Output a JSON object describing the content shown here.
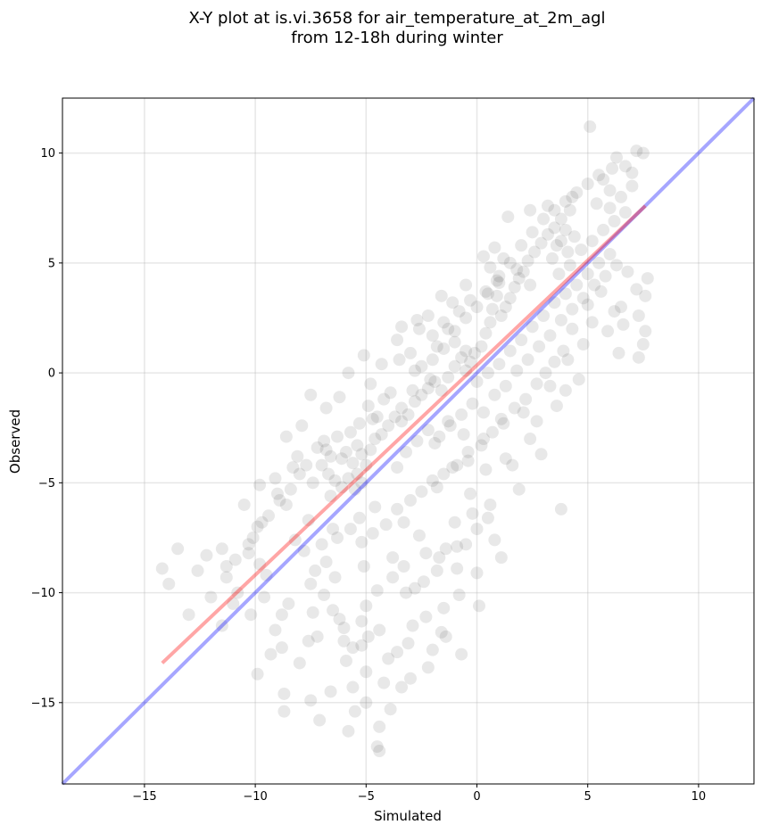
{
  "chart_data": {
    "type": "scatter",
    "title": "X-Y plot at is.vi.3658 for air_temperature_at_2m_agl",
    "subtitle": "from 12-18h during winter",
    "xlabel": "Simulated",
    "ylabel": "Observed",
    "xlim": [
      -18.7,
      12.5
    ],
    "ylim": [
      -18.7,
      12.5
    ],
    "xticks": [
      -15,
      -10,
      -5,
      0,
      5,
      10
    ],
    "yticks": [
      -15,
      -10,
      -5,
      0,
      5,
      10
    ],
    "xtick_labels": [
      "−15",
      "−10",
      "−5",
      "0",
      "5",
      "10"
    ],
    "ytick_labels": [
      "−15",
      "−10",
      "−5",
      "0",
      "5",
      "10"
    ],
    "grid": true,
    "point_color": "#000000",
    "point_alpha": 0.09,
    "points": [
      [
        -14.2,
        -8.9
      ],
      [
        -13.5,
        -8.0
      ],
      [
        -13.9,
        -9.6
      ],
      [
        -12.2,
        -8.3
      ],
      [
        -11.5,
        -8.0
      ],
      [
        -11.3,
        -8.8
      ],
      [
        -11.0,
        -10.5
      ],
      [
        -11.5,
        -11.5
      ],
      [
        -10.3,
        -8.2
      ],
      [
        -10.1,
        -7.5
      ],
      [
        -9.7,
        -6.8
      ],
      [
        -9.8,
        -8.7
      ],
      [
        -9.5,
        -9.2
      ],
      [
        -9.9,
        -13.7
      ],
      [
        -9.3,
        -12.8
      ],
      [
        -8.8,
        -11.0
      ],
      [
        -8.8,
        -12.5
      ],
      [
        -8.7,
        -14.6
      ],
      [
        -8.7,
        -15.4
      ],
      [
        -9.0,
        -5.5
      ],
      [
        -8.6,
        -6.0
      ],
      [
        -8.3,
        -4.3
      ],
      [
        -8.1,
        -3.8
      ],
      [
        -7.6,
        -6.7
      ],
      [
        -7.5,
        -9.6
      ],
      [
        -7.4,
        -10.9
      ],
      [
        -7.2,
        -12.0
      ],
      [
        -7.5,
        -14.9
      ],
      [
        -7.1,
        -15.8
      ],
      [
        -6.8,
        -3.5
      ],
      [
        -6.6,
        -5.6
      ],
      [
        -6.5,
        -7.1
      ],
      [
        -6.4,
        -9.3
      ],
      [
        -6.2,
        -11.2
      ],
      [
        -6.0,
        -12.2
      ],
      [
        -5.9,
        -13.1
      ],
      [
        -5.8,
        -16.3
      ],
      [
        -5.6,
        -14.3
      ],
      [
        -5.4,
        -4.6
      ],
      [
        -5.3,
        -6.6
      ],
      [
        -5.1,
        -8.8
      ],
      [
        -5.0,
        -10.6
      ],
      [
        -5.2,
        -12.4
      ],
      [
        -5.0,
        -13.6
      ],
      [
        -4.8,
        -0.5
      ],
      [
        -4.7,
        -2.1
      ],
      [
        -4.6,
        -6.1
      ],
      [
        -4.4,
        -11.7
      ],
      [
        -4.4,
        -16.1
      ],
      [
        -4.4,
        -17.2
      ],
      [
        -4.5,
        -17.0
      ],
      [
        -4.0,
        -13.0
      ],
      [
        -3.9,
        -15.3
      ],
      [
        -3.8,
        -8.4
      ],
      [
        -3.6,
        -4.3
      ],
      [
        -3.4,
        -2.2
      ],
      [
        -3.3,
        -6.8
      ],
      [
        -3.2,
        -10.0
      ],
      [
        -3.1,
        -12.3
      ],
      [
        -3.0,
        -13.9
      ],
      [
        -2.9,
        -0.8
      ],
      [
        -2.8,
        0.1
      ],
      [
        -2.6,
        -7.4
      ],
      [
        -2.4,
        -9.5
      ],
      [
        -2.3,
        -11.1
      ],
      [
        -2.2,
        -13.4
      ],
      [
        -2.1,
        -0.3
      ],
      [
        -1.9,
        -3.2
      ],
      [
        -1.8,
        -5.2
      ],
      [
        -1.7,
        -8.4
      ],
      [
        -1.5,
        -10.7
      ],
      [
        -1.4,
        -12.0
      ],
      [
        -1.3,
        -2.2
      ],
      [
        -1.1,
        -4.3
      ],
      [
        -1.0,
        -6.8
      ],
      [
        -0.9,
        -7.9
      ],
      [
        -0.7,
        -12.8
      ],
      [
        -0.6,
        -2.8
      ],
      [
        -0.4,
        -4.0
      ],
      [
        -0.3,
        -5.5
      ],
      [
        -0.2,
        -6.4
      ],
      [
        0.0,
        -9.1
      ],
      [
        0.1,
        -10.6
      ],
      [
        0.3,
        -3.0
      ],
      [
        0.4,
        -4.4
      ],
      [
        0.6,
        -6.0
      ],
      [
        0.8,
        -7.6
      ],
      [
        1.1,
        -2.1
      ],
      [
        1.3,
        -3.9
      ],
      [
        1.1,
        -8.4
      ],
      [
        1.6,
        -4.2
      ],
      [
        1.9,
        -5.3
      ],
      [
        2.1,
        -1.8
      ],
      [
        2.4,
        -3.0
      ],
      [
        2.7,
        -2.2
      ],
      [
        2.9,
        -3.7
      ],
      [
        3.3,
        -0.6
      ],
      [
        3.8,
        -6.2
      ],
      [
        3.6,
        -1.5
      ],
      [
        4.0,
        -0.8
      ],
      [
        4.1,
        0.6
      ],
      [
        4.3,
        2.0
      ],
      [
        4.6,
        -0.3
      ],
      [
        4.8,
        1.3
      ],
      [
        5.0,
        3.1
      ],
      [
        5.2,
        2.3
      ],
      [
        5.6,
        3.7
      ],
      [
        5.9,
        1.9
      ],
      [
        6.2,
        2.8
      ],
      [
        6.4,
        0.9
      ],
      [
        6.5,
        3.0
      ],
      [
        6.6,
        2.2
      ],
      [
        6.8,
        4.6
      ],
      [
        7.2,
        3.8
      ],
      [
        7.3,
        2.6
      ],
      [
        7.6,
        3.5
      ],
      [
        7.7,
        4.3
      ],
      [
        7.6,
        1.9
      ],
      [
        7.3,
        0.7
      ],
      [
        7.5,
        1.3
      ],
      [
        5.1,
        11.2
      ],
      [
        6.1,
        9.3
      ],
      [
        6.3,
        9.8
      ],
      [
        6.7,
        9.4
      ],
      [
        7.0,
        9.1
      ],
      [
        7.2,
        10.1
      ],
      [
        7.5,
        10.0
      ],
      [
        6.0,
        8.3
      ],
      [
        5.7,
        8.8
      ],
      [
        5.4,
        7.7
      ],
      [
        4.2,
        7.4
      ],
      [
        4.3,
        8.0
      ],
      [
        3.8,
        7.0
      ],
      [
        3.2,
        7.6
      ],
      [
        2.4,
        7.4
      ],
      [
        1.4,
        7.1
      ],
      [
        0.8,
        5.7
      ],
      [
        0.3,
        5.3
      ],
      [
        -0.5,
        4.0
      ],
      [
        -1.1,
        3.2
      ],
      [
        -1.6,
        3.5
      ],
      [
        -2.2,
        2.6
      ],
      [
        -2.7,
        2.4
      ],
      [
        -3.4,
        2.1
      ],
      [
        -3.6,
        1.5
      ],
      [
        -4.3,
        0.4
      ],
      [
        -5.1,
        0.8
      ],
      [
        -5.8,
        0.0
      ],
      [
        -6.2,
        -1.1
      ],
      [
        -6.8,
        -1.6
      ],
      [
        -7.5,
        -1.0
      ],
      [
        -7.9,
        -2.4
      ],
      [
        -8.6,
        -2.9
      ],
      [
        -9.1,
        -4.8
      ],
      [
        -9.8,
        -5.1
      ],
      [
        -10.5,
        -6.0
      ],
      [
        -6.1,
        -3.9
      ],
      [
        -5.9,
        -3.6
      ],
      [
        -5.6,
        -4.1
      ],
      [
        -5.4,
        -3.3
      ],
      [
        -5.2,
        -3.7
      ],
      [
        -5.0,
        -4.2
      ],
      [
        -4.8,
        -3.5
      ],
      [
        -4.6,
        -3.0
      ],
      [
        -4.3,
        -2.8
      ],
      [
        -4.0,
        -2.4
      ],
      [
        -3.7,
        -2.0
      ],
      [
        -3.4,
        -1.6
      ],
      [
        -3.1,
        -1.9
      ],
      [
        -2.8,
        -1.3
      ],
      [
        -2.5,
        -1.0
      ],
      [
        -2.2,
        -0.7
      ],
      [
        -1.9,
        -0.4
      ],
      [
        -1.6,
        -0.8
      ],
      [
        -1.3,
        -0.2
      ],
      [
        -1.0,
        0.3
      ],
      [
        -0.7,
        0.7
      ],
      [
        -0.5,
        1.0
      ],
      [
        -0.3,
        0.5
      ],
      [
        -0.1,
        0.9
      ],
      [
        0.2,
        1.2
      ],
      [
        0.4,
        1.8
      ],
      [
        0.6,
        2.3
      ],
      [
        0.7,
        2.9
      ],
      [
        0.9,
        3.5
      ],
      [
        1.0,
        4.1
      ],
      [
        1.1,
        2.6
      ],
      [
        1.3,
        3.0
      ],
      [
        1.5,
        3.4
      ],
      [
        1.7,
        3.9
      ],
      [
        1.9,
        4.3
      ],
      [
        2.1,
        4.6
      ],
      [
        2.3,
        5.1
      ],
      [
        2.6,
        5.5
      ],
      [
        2.9,
        5.9
      ],
      [
        3.2,
        6.3
      ],
      [
        3.5,
        6.6
      ],
      [
        3.8,
        6.0
      ],
      [
        4.1,
        5.5
      ],
      [
        4.4,
        6.2
      ],
      [
        -6.7,
        -4.6
      ],
      [
        -6.4,
        -4.9
      ],
      [
        -6.1,
        -5.2
      ],
      [
        -5.8,
        -4.8
      ],
      [
        -5.5,
        -5.3
      ],
      [
        -5.2,
        -5.0
      ],
      [
        -6.9,
        -3.1
      ],
      [
        -7.2,
        -3.4
      ],
      [
        -7.7,
        -4.2
      ],
      [
        -8.0,
        -4.6
      ],
      [
        -8.4,
        -5.3
      ],
      [
        -8.9,
        -5.8
      ],
      [
        -9.4,
        -6.5
      ],
      [
        -9.9,
        -7.0
      ],
      [
        -10.3,
        -7.8
      ],
      [
        -10.9,
        -8.5
      ],
      [
        -11.3,
        -9.3
      ],
      [
        -7.0,
        -7.8
      ],
      [
        -6.8,
        -8.6
      ],
      [
        -6.3,
        -7.5
      ],
      [
        -5.7,
        -7.1
      ],
      [
        -5.2,
        -7.7
      ],
      [
        -4.7,
        -7.3
      ],
      [
        -4.1,
        -6.9
      ],
      [
        -3.6,
        -6.2
      ],
      [
        -3.0,
        -5.8
      ],
      [
        -2.5,
        -5.4
      ],
      [
        -2.0,
        -4.9
      ],
      [
        -1.5,
        -4.6
      ],
      [
        -0.9,
        -4.2
      ],
      [
        -0.4,
        -3.6
      ],
      [
        0.2,
        -3.3
      ],
      [
        0.7,
        -2.7
      ],
      [
        1.2,
        -2.3
      ],
      [
        1.7,
        -1.6
      ],
      [
        2.2,
        -1.2
      ],
      [
        2.7,
        -0.5
      ],
      [
        3.1,
        0.0
      ],
      [
        3.5,
        0.5
      ],
      [
        3.9,
        1.0
      ],
      [
        -3.8,
        -9.3
      ],
      [
        -3.3,
        -8.8
      ],
      [
        -2.8,
        -9.8
      ],
      [
        -2.3,
        -8.2
      ],
      [
        -1.8,
        -9.0
      ],
      [
        -1.4,
        -8.0
      ],
      [
        -0.9,
        -8.9
      ],
      [
        -0.5,
        -7.8
      ],
      [
        0.0,
        -7.1
      ],
      [
        0.5,
        -6.6
      ],
      [
        -8.2,
        -7.6
      ],
      [
        -7.8,
        -8.1
      ],
      [
        -7.3,
        -9.0
      ],
      [
        -6.9,
        -10.1
      ],
      [
        -6.5,
        -10.8
      ],
      [
        -6.0,
        -11.6
      ],
      [
        -5.6,
        -12.5
      ],
      [
        -5.2,
        -11.3
      ],
      [
        -4.9,
        -12.0
      ],
      [
        -4.5,
        -9.9
      ],
      [
        -2.6,
        2.0
      ],
      [
        -2.0,
        1.7
      ],
      [
        -1.5,
        2.3
      ],
      [
        -1.0,
        1.9
      ],
      [
        -0.5,
        2.5
      ],
      [
        0.0,
        3.0
      ],
      [
        0.5,
        3.6
      ],
      [
        1.0,
        4.4
      ],
      [
        1.5,
        5.0
      ],
      [
        2.0,
        5.8
      ],
      [
        2.5,
        6.4
      ],
      [
        3.0,
        7.0
      ],
      [
        3.5,
        7.4
      ],
      [
        4.0,
        7.8
      ],
      [
        4.5,
        8.2
      ],
      [
        5.0,
        8.6
      ],
      [
        5.5,
        9.0
      ],
      [
        6.0,
        7.5
      ],
      [
        6.5,
        8.0
      ],
      [
        7.0,
        8.5
      ],
      [
        -3.5,
        0.6
      ],
      [
        -3.0,
        0.9
      ],
      [
        -2.5,
        0.3
      ],
      [
        -2.0,
        0.6
      ],
      [
        -1.5,
        1.1
      ],
      [
        -1.0,
        1.4
      ],
      [
        -0.5,
        0.1
      ],
      [
        0.0,
        -0.4
      ],
      [
        0.5,
        0.0
      ],
      [
        1.0,
        0.4
      ],
      [
        1.5,
        1.0
      ],
      [
        2.0,
        1.5
      ],
      [
        2.5,
        2.1
      ],
      [
        3.0,
        2.6
      ],
      [
        3.5,
        3.2
      ],
      [
        4.0,
        3.6
      ],
      [
        4.5,
        4.0
      ],
      [
        5.0,
        4.5
      ],
      [
        5.5,
        5.0
      ],
      [
        6.0,
        5.4
      ],
      [
        -4.2,
        -1.2
      ],
      [
        -3.9,
        -0.9
      ],
      [
        -4.5,
        -2.0
      ],
      [
        -4.9,
        -1.5
      ],
      [
        -5.3,
        -2.3
      ],
      [
        -5.7,
        -2.7
      ],
      [
        -6.3,
        -2.9
      ],
      [
        -6.6,
        -3.8
      ],
      [
        -7.0,
        -4.2
      ],
      [
        -7.4,
        -5.0
      ],
      [
        -3.2,
        -3.6
      ],
      [
        -2.7,
        -3.1
      ],
      [
        -2.2,
        -2.6
      ],
      [
        -1.7,
        -2.9
      ],
      [
        -1.2,
        -2.4
      ],
      [
        -0.7,
        -1.9
      ],
      [
        -0.2,
        -1.4
      ],
      [
        0.3,
        -1.8
      ],
      [
        0.8,
        -1.0
      ],
      [
        1.3,
        -0.6
      ],
      [
        1.8,
        0.1
      ],
      [
        2.3,
        0.6
      ],
      [
        2.8,
        1.2
      ],
      [
        3.3,
        1.7
      ],
      [
        3.8,
        2.4
      ],
      [
        4.3,
        2.9
      ],
      [
        4.8,
        3.4
      ],
      [
        5.3,
        4.0
      ],
      [
        5.8,
        4.4
      ],
      [
        6.3,
        4.9
      ],
      [
        -12.0,
        -10.2
      ],
      [
        -12.6,
        -9.0
      ],
      [
        -13.0,
        -11.0
      ],
      [
        -10.8,
        -10.0
      ],
      [
        -10.2,
        -11.0
      ],
      [
        -9.6,
        -10.2
      ],
      [
        -9.1,
        -11.7
      ],
      [
        -8.5,
        -10.5
      ],
      [
        -8.0,
        -13.2
      ],
      [
        -7.6,
        -12.2
      ],
      [
        -3.4,
        -14.3
      ],
      [
        -2.0,
        -12.6
      ],
      [
        -1.6,
        -11.8
      ],
      [
        -0.8,
        -10.1
      ],
      [
        -2.9,
        -11.5
      ],
      [
        -3.6,
        -12.7
      ],
      [
        -4.2,
        -14.1
      ],
      [
        -5.0,
        -15.0
      ],
      [
        -5.5,
        -15.4
      ],
      [
        -6.6,
        -14.5
      ],
      [
        0.6,
        4.8
      ],
      [
        0.9,
        4.2
      ],
      [
        1.2,
        5.2
      ],
      [
        1.8,
        4.7
      ],
      [
        2.4,
        4.0
      ],
      [
        0.4,
        3.7
      ],
      [
        -0.3,
        3.3
      ],
      [
        -0.8,
        2.8
      ],
      [
        -1.3,
        2.0
      ],
      [
        -1.8,
        1.2
      ],
      [
        3.4,
        5.2
      ],
      [
        3.7,
        4.5
      ],
      [
        4.2,
        4.9
      ],
      [
        4.7,
        5.6
      ],
      [
        5.2,
        6.0
      ],
      [
        5.7,
        6.5
      ],
      [
        6.2,
        6.9
      ],
      [
        6.7,
        7.3
      ],
      [
        4.0,
        6.5
      ],
      [
        3.6,
        5.8
      ]
    ],
    "regression_line": {
      "x": [
        -14.2,
        7.6
      ],
      "y": [
        -13.2,
        7.6
      ],
      "color": "#ff0000",
      "alpha": 0.35
    },
    "identity_line": {
      "x": [
        -18.7,
        12.5
      ],
      "y": [
        -18.7,
        12.5
      ],
      "color": "#0000ff",
      "alpha": 0.35
    }
  }
}
